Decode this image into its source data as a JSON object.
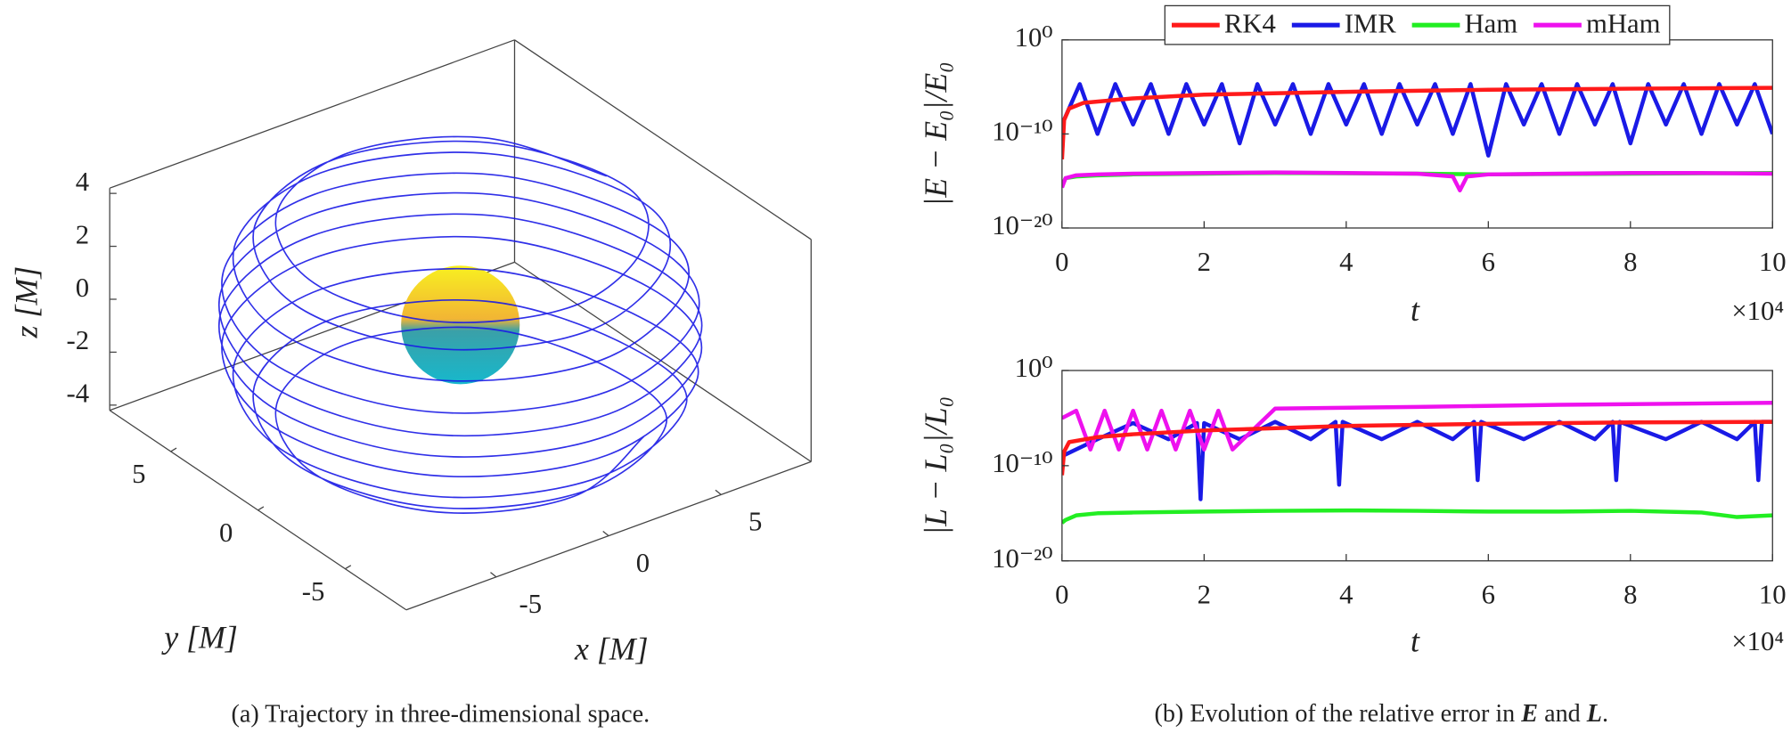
{
  "captions": {
    "a": "(a) Trajectory in three-dimensional space.",
    "b": [
      "(b) Evolution of the relative error in ",
      "E",
      " and ",
      "L",
      "."
    ]
  },
  "chart_data": [
    {
      "type": "line3d",
      "xlabel": "x [M]",
      "ylabel": "y [M]",
      "zlabel": "z [M]",
      "xlim": [
        -9,
        9
      ],
      "ylim": [
        -8.5,
        8.5
      ],
      "zlim": [
        -4.2,
        4.2
      ],
      "xticks": [
        -5,
        0,
        5
      ],
      "yticks": [
        -5,
        0,
        5
      ],
      "zticks": [
        -4,
        -2,
        0,
        2,
        4
      ],
      "series": [
        {
          "color": "#1a1ae6",
          "x": [
            6.5,
            4.6,
            0,
            -4.6,
            -6.5,
            -4.6,
            0,
            4.6,
            7.3,
            5.16,
            0,
            -5.16,
            -7.3,
            -5.16,
            0,
            5.16,
            8,
            5.66,
            0,
            -5.66,
            -8,
            -5.66,
            0,
            5.66,
            8.4,
            5.94,
            0,
            -5.94,
            -8.4,
            -5.94,
            0,
            5.94,
            8.5,
            6.01,
            0,
            -6.01,
            -8.5,
            -6.01,
            0,
            6.01,
            8.5,
            6.01,
            0,
            -6.01,
            -8.5,
            -6.01,
            0,
            6.01,
            8.4,
            5.94,
            0,
            -5.94,
            -8.4,
            -5.94,
            0,
            5.94,
            8,
            5.66,
            0,
            -5.66,
            -8,
            -5.66,
            0,
            5.66,
            7.3,
            5.16,
            0,
            -5.16,
            -7.3,
            -5.16,
            0,
            5.16,
            6.5,
            4.6,
            0,
            -4.6,
            -6.5,
            -4.6,
            0,
            4.6
          ],
          "y": [
            0,
            4.6,
            6.5,
            4.6,
            0,
            -4.6,
            -6.5,
            -4.6,
            0,
            5.16,
            7.3,
            5.16,
            0,
            -5.16,
            -7.3,
            -5.16,
            0,
            5.66,
            8,
            5.66,
            0,
            -5.66,
            -8,
            -5.66,
            0,
            5.94,
            8.4,
            5.94,
            0,
            -5.94,
            -8.4,
            -5.94,
            0,
            6.01,
            8.5,
            6.01,
            0,
            -6.01,
            -8.5,
            -6.01,
            0,
            6.01,
            8.5,
            6.01,
            0,
            -6.01,
            -8.5,
            -6.01,
            0,
            5.94,
            8.4,
            5.94,
            0,
            -5.94,
            -8.4,
            -5.94,
            0,
            5.66,
            8,
            5.66,
            0,
            -5.66,
            -8,
            -5.66,
            0,
            5.16,
            7.3,
            5.16,
            0,
            -5.16,
            -7.3,
            -5.16,
            0,
            4.6,
            6.5,
            4.6,
            0,
            -4.6,
            -6.5,
            -4.6
          ],
          "z": [
            3.6,
            3.6,
            3.6,
            3.6,
            3.6,
            3.6,
            3.6,
            3.6,
            3,
            3,
            3,
            3,
            3,
            3,
            3,
            3,
            2.2,
            2.2,
            2.2,
            2.2,
            2.2,
            2.2,
            2.2,
            2.2,
            1.2,
            1.2,
            1.2,
            1.2,
            1.2,
            1.2,
            1.2,
            1.2,
            0.4,
            0.4,
            0.4,
            0.4,
            0.4,
            0.4,
            0.4,
            0.4,
            -0.4,
            -0.4,
            -0.4,
            -0.4,
            -0.4,
            -0.4,
            -0.4,
            -0.4,
            -1.2,
            -1.2,
            -1.2,
            -1.2,
            -1.2,
            -1.2,
            -1.2,
            -1.2,
            -2.2,
            -2.2,
            -2.2,
            -2.2,
            -2.2,
            -2.2,
            -2.2,
            -2.2,
            -3,
            -3,
            -3,
            -3,
            -3,
            -3,
            -3,
            -3,
            -3.6,
            -3.6,
            -3.6,
            -3.6,
            -3.6,
            -3.6,
            -3.6,
            -3.6
          ]
        }
      ]
    },
    {
      "type": "line",
      "ylog": true,
      "legend": "top",
      "xlabel": "t",
      "ylabel": "|E − E₀|/E₀",
      "x_multiplier_label": "×10⁴",
      "xlim": [
        0,
        100000
      ],
      "ylim": [
        1e-20,
        1
      ],
      "xticks": [
        {
          "value": 0,
          "label": "0"
        },
        {
          "value": 20000,
          "label": "2"
        },
        {
          "value": 40000,
          "label": "4"
        },
        {
          "value": 60000,
          "label": "6"
        },
        {
          "value": 80000,
          "label": "8"
        },
        {
          "value": 100000,
          "label": "10"
        }
      ],
      "yticks": [
        {
          "value": 1,
          "label": "10⁰"
        },
        {
          "value": 1e-10,
          "label": "10⁻¹⁰"
        },
        {
          "value": 1e-20,
          "label": "10⁻²⁰"
        }
      ],
      "series": [
        {
          "name": "RK4",
          "color": "#ff1a1a",
          "x": [
            0,
            300,
            1000,
            3000,
            10000,
            20000,
            40000,
            60000,
            80000,
            100000
          ],
          "values": [
            2e-13,
            3e-09,
            5e-08,
            2e-07,
            6e-07,
            1.5e-06,
            3e-06,
            5e-06,
            6.5e-06,
            8e-06
          ]
        },
        {
          "name": "IMR",
          "color": "#1a1ae6",
          "x": [
            0,
            2500,
            5000,
            7500,
            10000,
            12500,
            15000,
            17500,
            20000,
            22500,
            25000,
            27500,
            30000,
            32500,
            35000,
            37500,
            40000,
            42500,
            45000,
            47500,
            50000,
            52500,
            55000,
            57500,
            60000,
            62500,
            65000,
            67500,
            70000,
            72500,
            75000,
            77500,
            80000,
            82500,
            85000,
            87500,
            90000,
            92500,
            95000,
            97500,
            100000
          ],
          "values": [
            1e-09,
            2e-05,
            1e-10,
            2e-05,
            1e-09,
            2e-05,
            1e-10,
            2e-05,
            1e-09,
            2e-05,
            1e-11,
            2e-05,
            1e-09,
            2e-05,
            1e-10,
            2e-05,
            1e-09,
            2e-05,
            1e-10,
            2e-05,
            1e-09,
            2e-05,
            1e-10,
            2e-05,
            5e-13,
            2e-05,
            1e-09,
            2e-05,
            1e-10,
            2e-05,
            1e-09,
            2e-05,
            1e-11,
            2e-05,
            1e-09,
            2e-05,
            1e-10,
            2e-05,
            1e-09,
            2e-05,
            1e-10
          ]
        },
        {
          "name": "Ham",
          "color": "#22ee22",
          "x": [
            0,
            500,
            2000,
            5000,
            10000,
            20000,
            30000,
            50000,
            60000,
            80000,
            100000
          ],
          "values": [
            3e-16,
            2e-15,
            3e-15,
            4e-15,
            5e-15,
            6e-15,
            7e-15,
            6e-15,
            5e-15,
            6e-15,
            7e-15
          ]
        },
        {
          "name": "mHam",
          "color": "#ee11ee",
          "x": [
            0,
            500,
            2000,
            5000,
            10000,
            20000,
            30000,
            40000,
            50000,
            55000,
            56000,
            57000,
            60000,
            70000,
            80000,
            90000,
            100000
          ],
          "values": [
            2e-16,
            2e-15,
            4e-15,
            5e-15,
            6e-15,
            7e-15,
            8e-15,
            7e-15,
            6e-15,
            3e-15,
            1e-16,
            3e-15,
            5e-15,
            6e-15,
            7e-15,
            7e-15,
            6e-15
          ]
        }
      ]
    },
    {
      "type": "line",
      "ylog": true,
      "xlabel": "t",
      "ylabel": "|L − L₀|/L₀",
      "x_multiplier_label": "×10⁴",
      "xlim": [
        0,
        100000
      ],
      "ylim": [
        1e-20,
        1
      ],
      "xticks": [
        {
          "value": 0,
          "label": "0"
        },
        {
          "value": 20000,
          "label": "2"
        },
        {
          "value": 40000,
          "label": "4"
        },
        {
          "value": 60000,
          "label": "6"
        },
        {
          "value": 80000,
          "label": "8"
        },
        {
          "value": 100000,
          "label": "10"
        }
      ],
      "yticks": [
        {
          "value": 1,
          "label": "10⁰"
        },
        {
          "value": 1e-10,
          "label": "10⁻¹⁰"
        },
        {
          "value": 1e-20,
          "label": "10⁻²⁰"
        }
      ],
      "series": [
        {
          "color": "#ff1a1a",
          "x": [
            0,
            300,
            1000,
            5000,
            10000,
            20000,
            40000,
            60000,
            80000,
            100000
          ],
          "values": [
            1e-11,
            3e-09,
            3e-08,
            1e-07,
            2e-07,
            5e-07,
            1.5e-06,
            2.5e-06,
            3.5e-06,
            4e-06
          ]
        },
        {
          "color": "#1a1ae6",
          "x": [
            0,
            5000,
            10000,
            15000,
            19000,
            19500,
            20000,
            25000,
            30000,
            35000,
            38500,
            39000,
            39500,
            45000,
            50000,
            55000,
            58000,
            58500,
            59000,
            65000,
            70000,
            75000,
            77500,
            78000,
            78500,
            85000,
            90000,
            95000,
            97500,
            98000,
            98500,
            100000
          ],
          "values": [
            1e-09,
            6e-08,
            3e-06,
            6e-08,
            3e-06,
            3e-14,
            3e-06,
            6e-08,
            4e-06,
            6e-08,
            4e-06,
            1e-12,
            4e-06,
            6e-08,
            4e-06,
            6e-08,
            4e-06,
            3e-12,
            4e-06,
            6e-08,
            4e-06,
            6e-08,
            4e-06,
            3e-12,
            4e-06,
            6e-08,
            4e-06,
            6e-08,
            4e-06,
            3e-12,
            4e-06,
            4e-06
          ]
        },
        {
          "color": "#22ee22",
          "x": [
            0,
            500,
            2000,
            5000,
            10000,
            20000,
            30000,
            40000,
            50000,
            60000,
            70000,
            80000,
            90000,
            95000,
            100000
          ],
          "values": [
            1e-16,
            2e-16,
            6e-16,
            1e-15,
            1.2e-15,
            1.5e-15,
            1.8e-15,
            2e-15,
            1.8e-15,
            1.5e-15,
            1.5e-15,
            1.8e-15,
            1.2e-15,
            4e-16,
            6e-16
          ]
        },
        {
          "color": "#ee11ee",
          "x": [
            0,
            2000,
            4000,
            6000,
            8000,
            10000,
            12000,
            14000,
            16000,
            18000,
            20000,
            22000,
            24000,
            30000,
            50000,
            70000,
            100000
          ],
          "values": [
            1e-05,
            6e-05,
            5e-09,
            6e-05,
            5e-09,
            6e-05,
            5e-09,
            6e-05,
            5e-09,
            6e-05,
            5e-09,
            6e-05,
            5e-09,
            0.0001,
            0.00015,
            0.00025,
            0.0004
          ]
        }
      ]
    }
  ]
}
